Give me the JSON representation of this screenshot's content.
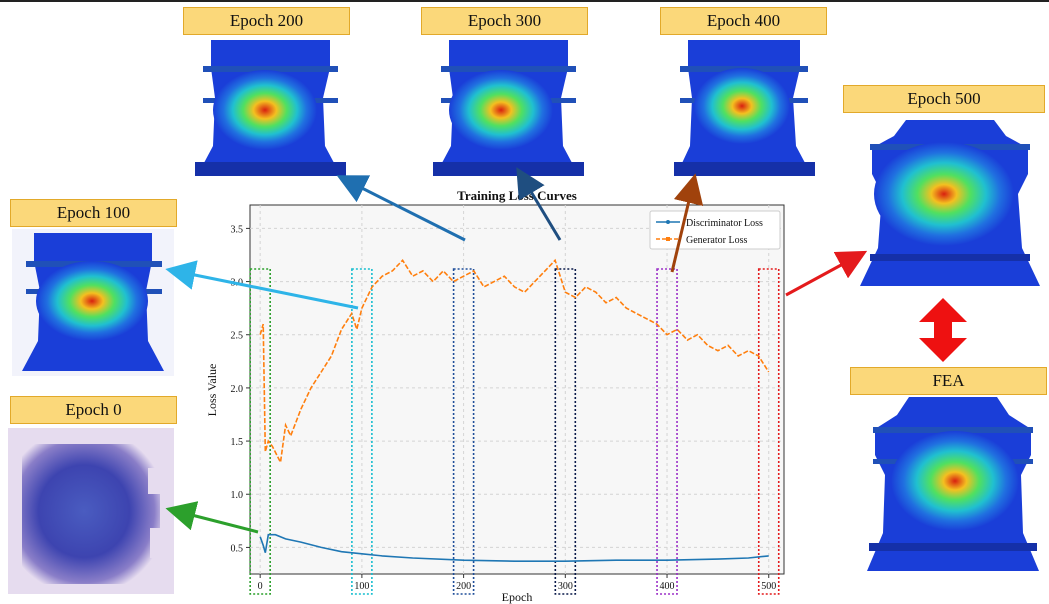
{
  "chart_data": {
    "type": "line",
    "title": "Training Loss Curves",
    "xlabel": "Epoch",
    "ylabel": "Loss Value",
    "xlim": [
      -10,
      515
    ],
    "ylim": [
      0.25,
      3.72
    ],
    "x_ticks": [
      0,
      100,
      200,
      300,
      400,
      500
    ],
    "y_ticks": [
      0.5,
      1.0,
      1.5,
      2.0,
      2.5,
      3.0,
      3.5
    ],
    "grid": true,
    "legend": "top-right",
    "series": [
      {
        "name": "Discriminator Loss",
        "color": "#1f77b4",
        "style": "solid",
        "points": [
          [
            0,
            0.6
          ],
          [
            3,
            0.52
          ],
          [
            5,
            0.45
          ],
          [
            8,
            0.62
          ],
          [
            15,
            0.62
          ],
          [
            25,
            0.58
          ],
          [
            40,
            0.55
          ],
          [
            60,
            0.5
          ],
          [
            80,
            0.46
          ],
          [
            100,
            0.44
          ],
          [
            120,
            0.42
          ],
          [
            150,
            0.4
          ],
          [
            200,
            0.38
          ],
          [
            250,
            0.37
          ],
          [
            300,
            0.37
          ],
          [
            350,
            0.38
          ],
          [
            400,
            0.38
          ],
          [
            450,
            0.39
          ],
          [
            480,
            0.4
          ],
          [
            500,
            0.42
          ]
        ]
      },
      {
        "name": "Generator Loss",
        "color": "#ff7f0e",
        "style": "dashed",
        "points": [
          [
            0,
            2.5
          ],
          [
            3,
            2.6
          ],
          [
            5,
            1.4
          ],
          [
            8,
            1.5
          ],
          [
            12,
            1.45
          ],
          [
            20,
            1.3
          ],
          [
            25,
            1.65
          ],
          [
            30,
            1.55
          ],
          [
            40,
            1.8
          ],
          [
            50,
            2.0
          ],
          [
            60,
            2.15
          ],
          [
            70,
            2.3
          ],
          [
            80,
            2.55
          ],
          [
            90,
            2.7
          ],
          [
            95,
            2.55
          ],
          [
            100,
            2.75
          ],
          [
            110,
            2.95
          ],
          [
            120,
            3.05
          ],
          [
            130,
            3.1
          ],
          [
            140,
            3.2
          ],
          [
            150,
            3.05
          ],
          [
            160,
            3.1
          ],
          [
            170,
            3.0
          ],
          [
            180,
            3.1
          ],
          [
            190,
            3.0
          ],
          [
            200,
            3.05
          ],
          [
            210,
            3.1
          ],
          [
            220,
            2.95
          ],
          [
            230,
            3.0
          ],
          [
            240,
            3.05
          ],
          [
            250,
            2.95
          ],
          [
            260,
            2.9
          ],
          [
            270,
            3.0
          ],
          [
            280,
            3.1
          ],
          [
            290,
            3.2
          ],
          [
            300,
            2.9
          ],
          [
            310,
            2.85
          ],
          [
            320,
            2.95
          ],
          [
            330,
            2.9
          ],
          [
            340,
            2.8
          ],
          [
            350,
            2.85
          ],
          [
            360,
            2.75
          ],
          [
            370,
            2.7
          ],
          [
            380,
            2.65
          ],
          [
            390,
            2.6
          ],
          [
            400,
            2.5
          ],
          [
            410,
            2.55
          ],
          [
            420,
            2.45
          ],
          [
            430,
            2.5
          ],
          [
            440,
            2.4
          ],
          [
            450,
            2.35
          ],
          [
            460,
            2.4
          ],
          [
            470,
            2.3
          ],
          [
            480,
            2.35
          ],
          [
            490,
            2.3
          ],
          [
            500,
            2.15
          ]
        ]
      }
    ],
    "highlight_boxes": [
      {
        "epoch": 0,
        "color": "#2ca02c"
      },
      {
        "epoch": 100,
        "color": "#17becf"
      },
      {
        "epoch": 200,
        "color": "#1f4e9a"
      },
      {
        "epoch": 300,
        "color": "#0a1a4a"
      },
      {
        "epoch": 400,
        "color": "#9b30c8"
      },
      {
        "epoch": 500,
        "color": "#e41a1c"
      }
    ]
  },
  "snapshots": {
    "epoch0": "Epoch 0",
    "epoch100": "Epoch 100",
    "epoch200": "Epoch 200",
    "epoch300": "Epoch 300",
    "epoch400": "Epoch 400",
    "epoch500": "Epoch 500",
    "fea": "FEA"
  }
}
